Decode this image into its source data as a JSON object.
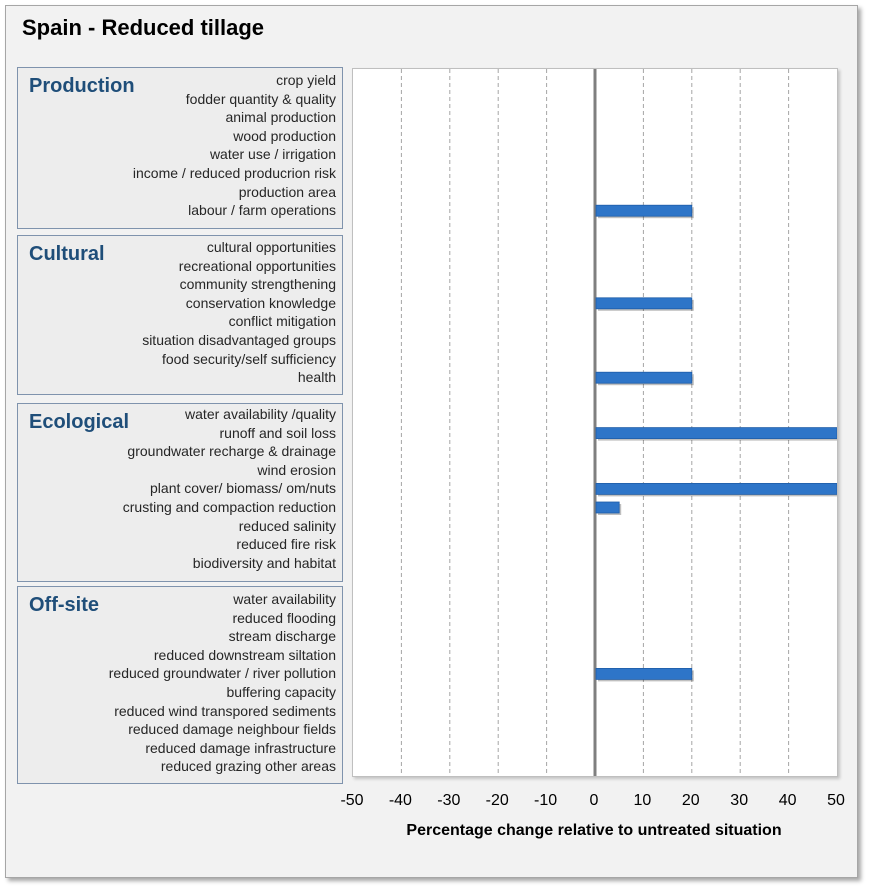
{
  "chart_data": {
    "type": "bar",
    "orientation": "horizontal",
    "title": "Spain - Reduced tillage",
    "xlabel": "Percentage change relative to untreated situation",
    "xlim": [
      -50,
      50
    ],
    "xticks": [
      -50,
      -40,
      -30,
      -20,
      -10,
      0,
      10,
      20,
      30,
      40,
      50
    ],
    "grid": true,
    "bar_color": "#2e75c8",
    "groups": [
      {
        "name": "Production",
        "categories": [
          "crop yield",
          "fodder quantity & quality",
          "animal production",
          "wood production",
          "water use / irrigation",
          "income / reduced producrion risk",
          "production area",
          "labour / farm operations"
        ],
        "values": [
          0,
          0,
          0,
          0,
          0,
          0,
          0,
          20
        ]
      },
      {
        "name": "Cultural",
        "categories": [
          "cultural opportunities",
          "recreational opportunities",
          "community strengthening",
          "conservation knowledge",
          "conflict mitigation",
          "situation disadvantaged groups",
          "food security/self sufficiency",
          "health"
        ],
        "values": [
          0,
          0,
          0,
          20,
          0,
          0,
          0,
          20
        ]
      },
      {
        "name": "Ecological",
        "categories": [
          "water availability /quality",
          "runoff and soil loss",
          "groundwater recharge & drainage",
          "wind erosion",
          "plant cover/ biomass/ om/nuts",
          "crusting and compaction reduction",
          "reduced salinity",
          "reduced fire risk",
          "biodiversity and habitat"
        ],
        "values": [
          0,
          50,
          0,
          0,
          50,
          5,
          0,
          0,
          0
        ]
      },
      {
        "name": "Off-site",
        "categories": [
          "water availability",
          "reduced flooding",
          "stream discharge",
          "reduced downstream siltation",
          "reduced groundwater / river pollution",
          "buffering capacity",
          "reduced wind transpored sediments",
          "reduced damage neighbour fields",
          "reduced damage infrastructure",
          "reduced grazing other areas"
        ],
        "values": [
          0,
          0,
          0,
          0,
          20,
          0,
          0,
          0,
          0,
          0
        ]
      }
    ]
  }
}
